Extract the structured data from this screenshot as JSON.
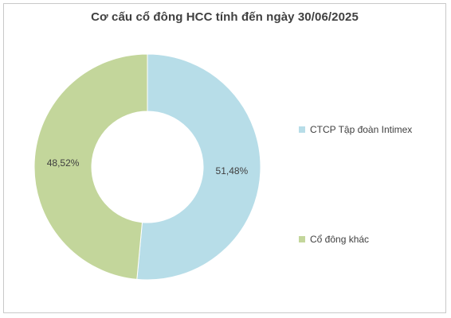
{
  "chart_data": {
    "type": "pie",
    "donut": true,
    "title": "Cơ cấu cổ đông HCC tính đến ngày 30/06/2025",
    "categories": [
      "CTCP Tập đoàn Intimex",
      "Cổ đông khác"
    ],
    "values": [
      51.48,
      48.52
    ],
    "labels": [
      "51,48%",
      "48,52%"
    ],
    "colors": [
      "#b7dde8",
      "#c3d69b"
    ],
    "legend_position": "right"
  }
}
